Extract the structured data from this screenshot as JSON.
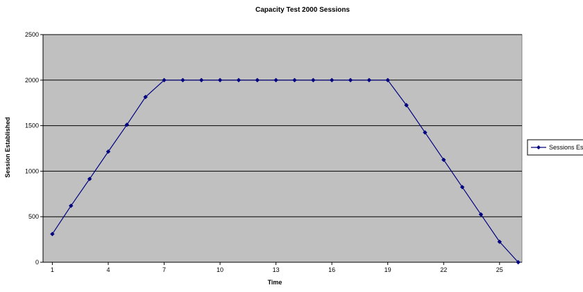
{
  "chart_data": {
    "type": "line",
    "title": "Capacity Test 2000 Sessions",
    "xlabel": "Time",
    "ylabel": "Session Established",
    "x": [
      1,
      2,
      3,
      4,
      5,
      6,
      7,
      8,
      9,
      10,
      11,
      12,
      13,
      14,
      15,
      16,
      17,
      18,
      19,
      20,
      21,
      22,
      23,
      24,
      25,
      26
    ],
    "x_tick_labels": [
      "1",
      "4",
      "7",
      "10",
      "13",
      "16",
      "19",
      "22",
      "25"
    ],
    "x_tick_values": [
      1,
      4,
      7,
      10,
      13,
      16,
      19,
      22,
      25
    ],
    "ylim": [
      0,
      2500
    ],
    "y_ticks": [
      0,
      500,
      1000,
      1500,
      2000,
      2500
    ],
    "grid": "horizontal",
    "legend_position": "right",
    "series": [
      {
        "name": "Sessions Esta",
        "values": [
          310,
          620,
          915,
          1215,
          1510,
          1815,
          2000,
          2000,
          2000,
          2000,
          2000,
          2000,
          2000,
          2000,
          2000,
          2000,
          2000,
          2000,
          2000,
          1725,
          1425,
          1125,
          825,
          525,
          225,
          0
        ],
        "color": "#000080",
        "marker": "diamond"
      }
    ],
    "plot_background": "#c0c0c0",
    "grid_color": "#000000"
  }
}
